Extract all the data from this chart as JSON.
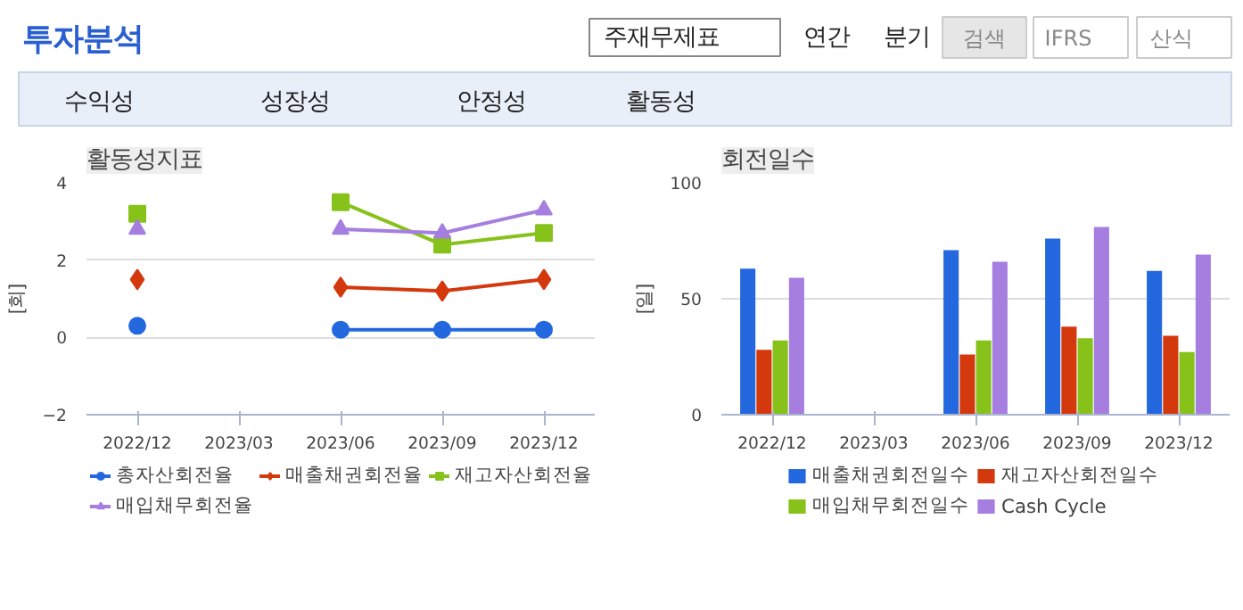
{
  "chart_data": [
    {
      "type": "other",
      "annotations": [
        "투자분석",
        "주재무제표",
        "연간",
        "분기",
        "검색",
        "IFRS",
        "산식",
        "수익성",
        "성장성",
        "안정성",
        "활동성"
      ]
    },
    {
      "type": "line",
      "title": "활동성지표",
      "ylabel": "[회]",
      "categories": [
        "2022/12",
        "2023/03",
        "2023/06",
        "2023/09",
        "2023/12"
      ],
      "ylim": [
        -2,
        4
      ],
      "yticks": [
        -2,
        0,
        2,
        4
      ],
      "grid": "y",
      "legend": "bottom",
      "series": [
        {
          "name": "총자산회전율",
          "color": "#2468e0",
          "marker": "circle",
          "values": [
            0.3,
            null,
            0.2,
            0.2,
            0.2
          ]
        },
        {
          "name": "매출채권회전율",
          "color": "#d4380d",
          "marker": "diamond",
          "values": [
            1.5,
            null,
            1.3,
            1.2,
            1.5
          ]
        },
        {
          "name": "재고자산회전율",
          "color": "#86c21a",
          "marker": "square",
          "values": [
            3.2,
            null,
            3.5,
            2.4,
            2.7
          ]
        },
        {
          "name": "매입채무회전율",
          "color": "#a67ee0",
          "marker": "triangle",
          "values": [
            2.8,
            null,
            2.8,
            2.7,
            3.3
          ]
        }
      ]
    },
    {
      "type": "bar",
      "title": "회전일수",
      "ylabel": "[일]",
      "categories": [
        "2022/12",
        "2023/03",
        "2023/06",
        "2023/09",
        "2023/12"
      ],
      "ylim": [
        0,
        100
      ],
      "yticks": [
        0,
        50,
        100
      ],
      "grid": "y",
      "legend": "bottom",
      "series": [
        {
          "name": "매출채권회전일수",
          "color": "#2468e0",
          "values": [
            63,
            null,
            71,
            76,
            62
          ]
        },
        {
          "name": "재고자산회전일수",
          "color": "#d4380d",
          "values": [
            28,
            null,
            26,
            38,
            34
          ]
        },
        {
          "name": "매입채무회전일수",
          "color": "#86c21a",
          "values": [
            32,
            null,
            32,
            33,
            27
          ]
        },
        {
          "name": "Cash Cycle",
          "color": "#a67ee0",
          "values": [
            59,
            null,
            66,
            81,
            69
          ]
        }
      ]
    }
  ]
}
